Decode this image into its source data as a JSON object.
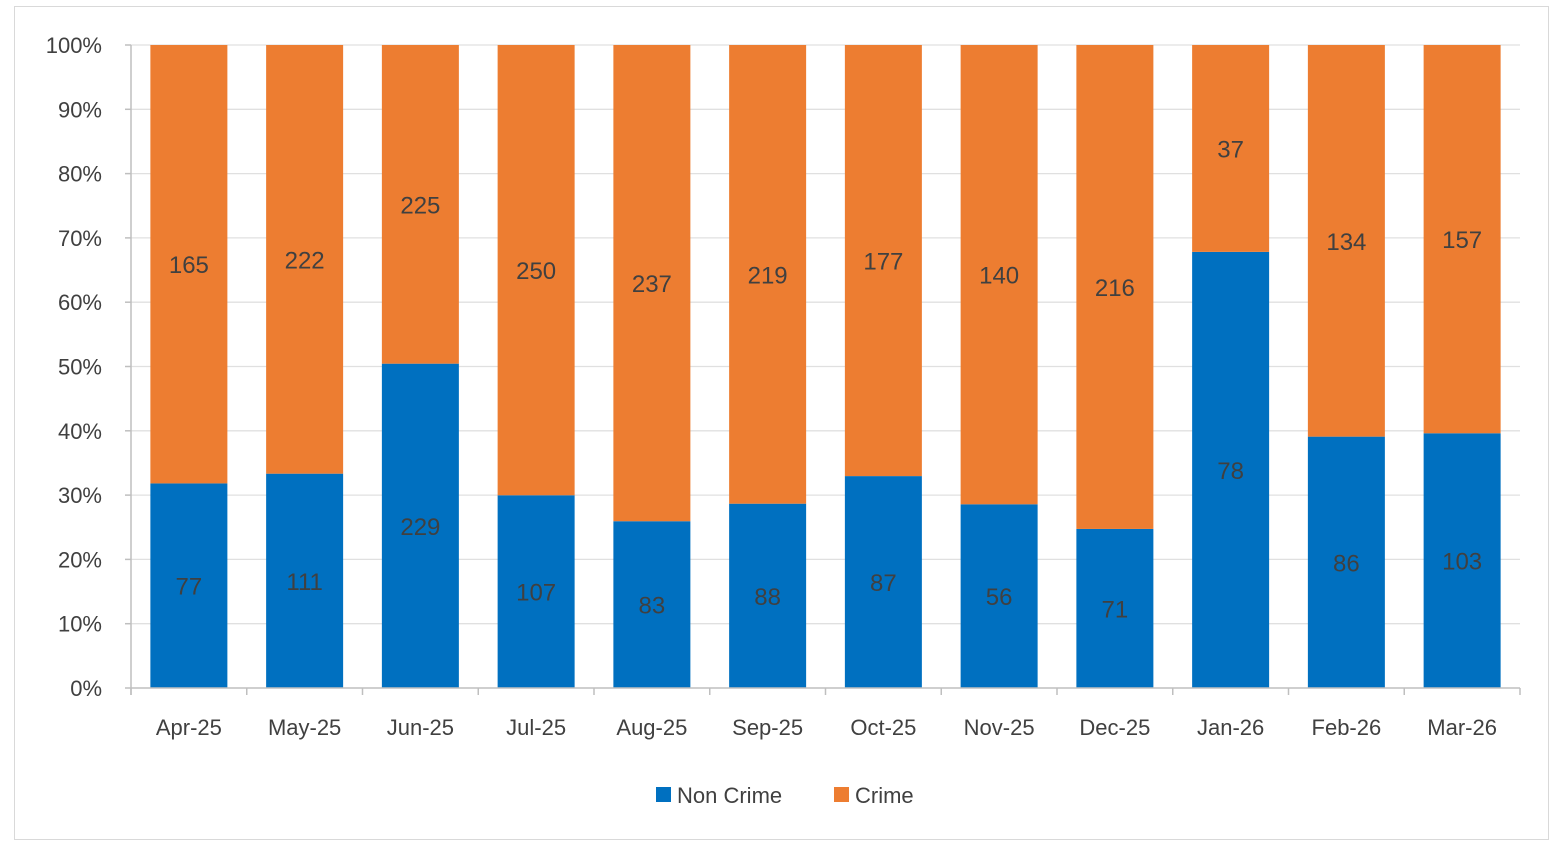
{
  "chart_data": {
    "type": "bar",
    "stacked": "percent",
    "categories": [
      "Apr-25",
      "May-25",
      "Jun-25",
      "Jul-25",
      "Aug-25",
      "Sep-25",
      "Oct-25",
      "Nov-25",
      "Dec-25",
      "Jan-26",
      "Feb-26",
      "Mar-26"
    ],
    "series": [
      {
        "name": "Non Crime",
        "color": "#0070c0",
        "values": [
          77,
          111,
          229,
          107,
          83,
          88,
          87,
          56,
          71,
          78,
          86,
          103
        ]
      },
      {
        "name": "Crime",
        "color": "#ed7d31",
        "values": [
          165,
          222,
          225,
          250,
          237,
          219,
          177,
          140,
          216,
          37,
          134,
          157
        ]
      }
    ],
    "y_ticks": [
      "0%",
      "10%",
      "20%",
      "30%",
      "40%",
      "50%",
      "60%",
      "70%",
      "80%",
      "90%",
      "100%"
    ],
    "ylim": [
      0,
      100
    ],
    "grid": true,
    "legend": "bottom",
    "data_labels": true
  }
}
